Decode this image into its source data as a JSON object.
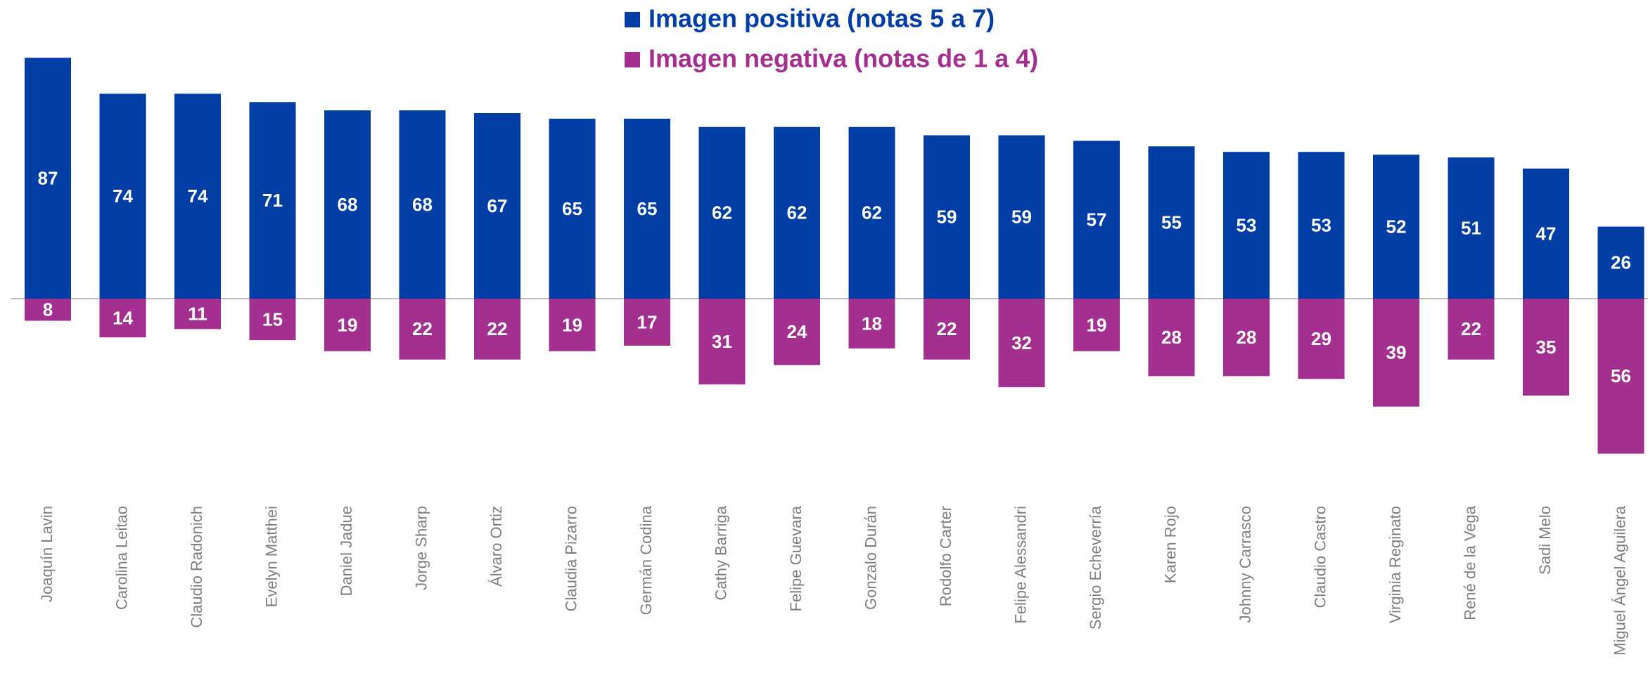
{
  "chart_data": {
    "type": "bar",
    "categories": [
      "Joaquín Lavin",
      "Carolina Leitao",
      "Claudio Radonich",
      "Evelyn Matthei",
      "Daniel Jadue",
      "Jorge Sharp",
      "Álvaro Ortiz",
      "Claudia Pizarro",
      "Germán Codina",
      "Cathy Barriga",
      "Felipe Guevara",
      "Gonzalo Durán",
      "Rodolfo Carter",
      "Felipe Alessandri",
      "Sergio Echeverría",
      "Karen Rojo",
      "Johnny Carrasco",
      "Claudio Castro",
      "Virginia Reginato",
      "René de la Vega",
      "Sadi Melo",
      "Miguel Ángel Aguilera"
    ],
    "series": [
      {
        "name": "Imagen positiva (notas 5 a 7)",
        "color": "#003da5",
        "values": [
          87,
          74,
          74,
          71,
          68,
          68,
          67,
          65,
          65,
          62,
          62,
          62,
          59,
          59,
          57,
          55,
          53,
          53,
          52,
          51,
          47,
          26
        ]
      },
      {
        "name": "Imagen negativa (notas de 1 a 4)",
        "color": "#a3308f",
        "values": [
          -8,
          -14,
          -11,
          -15,
          -19,
          -22,
          -22,
          -19,
          -17,
          -31,
          -24,
          -18,
          -22,
          -32,
          -19,
          -28,
          -28,
          -29,
          -39,
          -22,
          -35,
          -56
        ],
        "value_labels": [
          "8",
          "14",
          "11",
          "15",
          "19",
          "22",
          "22",
          "19",
          "17",
          "31",
          "24",
          "18",
          "22",
          "32",
          "19",
          "28",
          "28",
          "29",
          "39",
          "22",
          "35",
          "56"
        ]
      }
    ],
    "legend": "top"
  }
}
